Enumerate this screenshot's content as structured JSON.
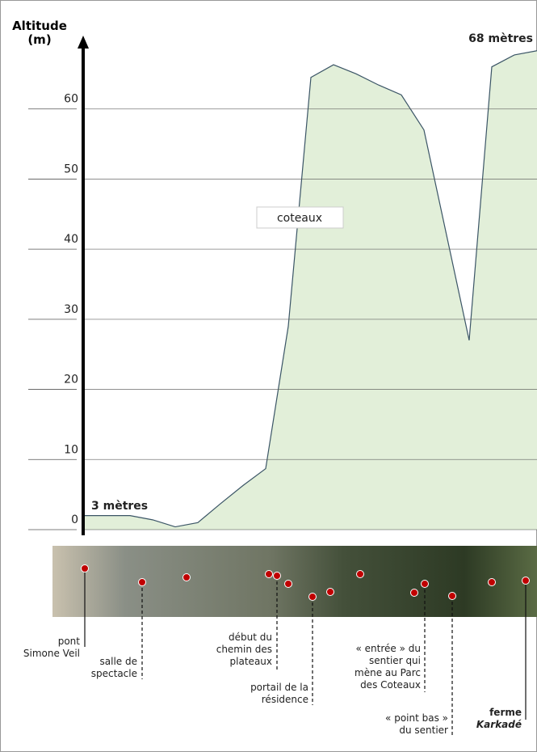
{
  "chart_data": {
    "type": "area",
    "ylabel": "Altitude (m)",
    "categories": [
      null,
      null,
      null,
      null,
      null,
      null,
      null,
      null,
      null,
      null,
      null,
      null,
      null,
      null,
      null,
      null,
      null,
      null,
      null,
      null,
      null
    ],
    "values": [
      2,
      2,
      2,
      1.4,
      0.4,
      1,
      3.7,
      6.3,
      8.7,
      29,
      64.5,
      66.3,
      65,
      63.4,
      62,
      57,
      42,
      27,
      66,
      67.7,
      68.3
    ],
    "color": "#e2efd9",
    "line_color": "#3b5566",
    "ylim": [
      0,
      70
    ],
    "yticks": [
      0,
      10,
      20,
      30,
      40,
      50,
      60
    ],
    "grid": true,
    "annotations": [
      "3 mètres",
      "68 mètres",
      "coteaux"
    ]
  },
  "map_labels": [
    "pont\nSimone Veil",
    "salle de\nspectacle",
    "début du\nchemin des\nplateaux",
    "portail de la\nrésidence",
    "« entrée » du\nsentier qui\nmène au Parc\ndes Coteaux",
    "« point bas »\ndu sentier"
  ],
  "farm_label": [
    "ferme",
    "Karkadé"
  ]
}
